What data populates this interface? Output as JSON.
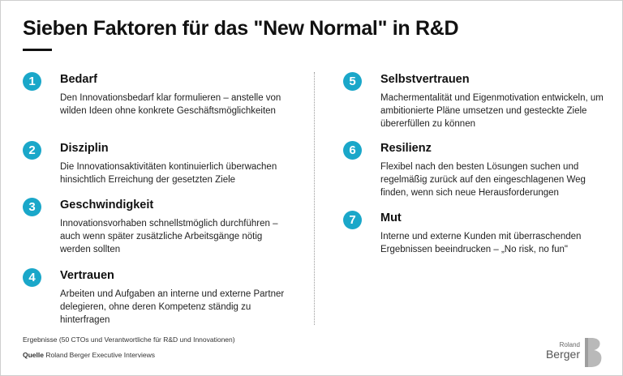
{
  "header": {
    "title": "Sieben Faktoren für das \"New Normal\" in R&D"
  },
  "factors": [
    {
      "number": "1",
      "title": "Bedarf",
      "description": "Den Innovationsbedarf klar formulieren – anstelle von wilden Ideen ohne konkrete Geschäftsmöglichkeiten"
    },
    {
      "number": "2",
      "title": "Disziplin",
      "description": "Die Innovationsaktivitäten kontinuierlich überwachen hinsichtlich Erreichung der gesetzten Ziele"
    },
    {
      "number": "3",
      "title": "Geschwindigkeit",
      "description": "Innovationsvorhaben schnellstmöglich durchführen – auch wenn später zusätzliche Arbeitsgänge nötig werden sollten"
    },
    {
      "number": "4",
      "title": "Vertrauen",
      "description": "Arbeiten und Aufgaben an interne und externe Partner delegieren, ohne deren Kompetenz ständig zu hinterfragen"
    },
    {
      "number": "5",
      "title": "Selbstvertrauen",
      "description": "Machermentalität und Eigenmotivation entwickeln, um ambitionierte Pläne umsetzen und gesteckte Ziele übererfüllen zu können"
    },
    {
      "number": "6",
      "title": "Resilienz",
      "description": "Flexibel nach den besten Lösungen suchen und regelmäßig zurück auf den eingeschlagenen Weg finden, wenn sich neue Herausforderungen"
    },
    {
      "number": "7",
      "title": "Mut",
      "description": "Interne und externe Kunden mit überraschenden Ergebnissen beeindrucken – „No risk, no fun\""
    }
  ],
  "footer": {
    "note": "Ergebnisse (50 CTOs und Verantwortliche für R&D und Innovationen)",
    "source_label": "Quelle",
    "source_text": "Roland Berger Executive Interviews"
  },
  "logo": {
    "small": "Roland",
    "big": "Berger"
  },
  "colors": {
    "accent": "#1aa7c9"
  }
}
